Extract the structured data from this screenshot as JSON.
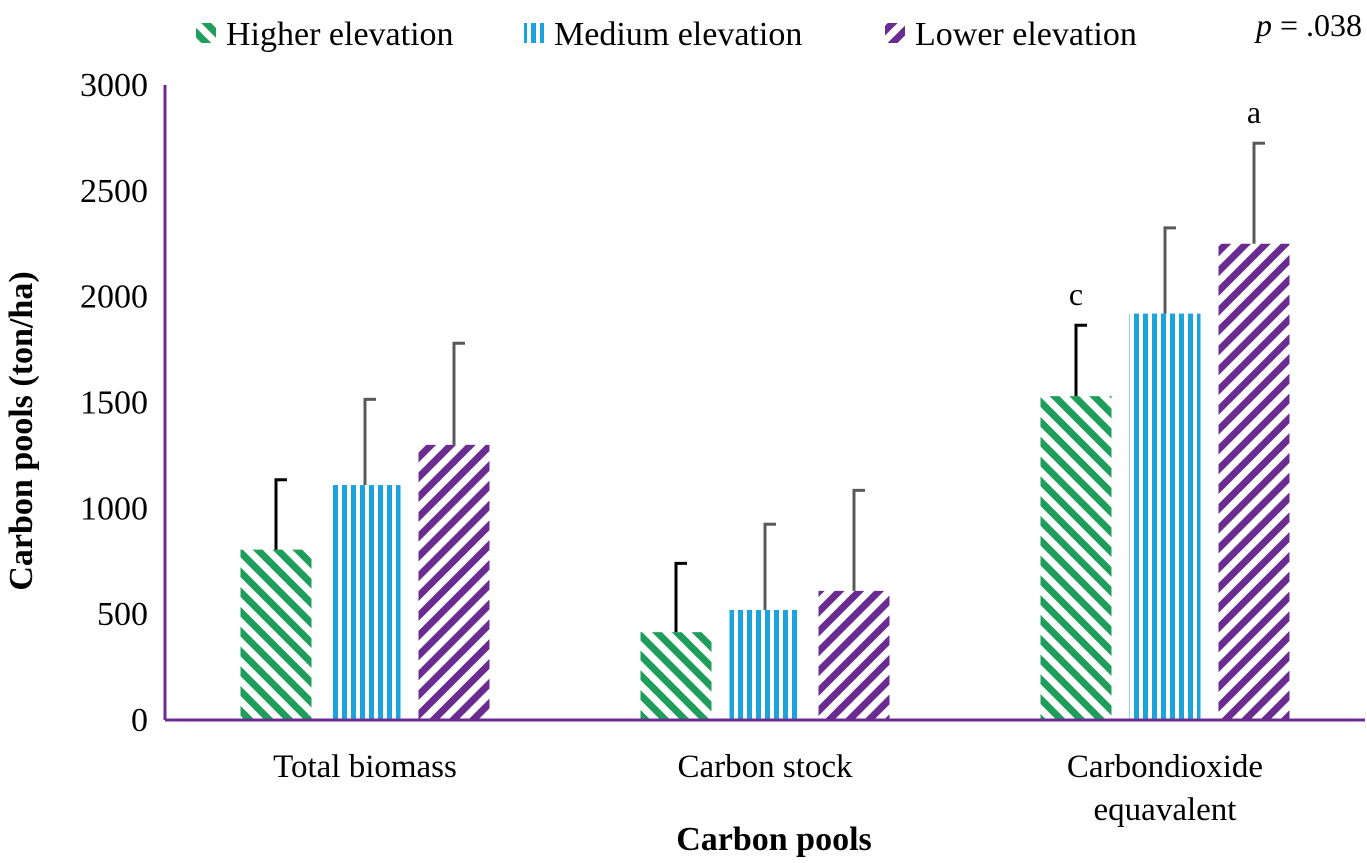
{
  "chart_data": {
    "type": "bar",
    "categories": [
      "Total biomass",
      "Carbon stock",
      "Carbondioxide equavalent"
    ],
    "category_lines": [
      [
        "Total biomass"
      ],
      [
        "Carbon stock"
      ],
      [
        "Carbondioxide",
        "equavalent"
      ]
    ],
    "series": [
      {
        "name": "Higher elevation",
        "values": [
          805,
          415,
          1530
        ],
        "error_upper": [
          1135,
          740,
          1865
        ],
        "color": "#1e9e5a",
        "pattern": "diagonal-stripes"
      },
      {
        "name": "Medium elevation",
        "values": [
          1110,
          520,
          1920
        ],
        "error_upper": [
          1515,
          925,
          2325
        ],
        "color": "#1aa3dc",
        "pattern": "vertical-stripes"
      },
      {
        "name": "Lower elevation",
        "values": [
          1300,
          610,
          2250
        ],
        "error_upper": [
          1780,
          1085,
          2725
        ],
        "color": "#6a2c91",
        "pattern": "diagonal-stripes-wide"
      }
    ],
    "annotations": [
      {
        "series": 0,
        "category": 2,
        "text": "c"
      },
      {
        "series": 2,
        "category": 2,
        "text": "a"
      }
    ],
    "p_value": {
      "label": "p",
      "text": " = .038"
    },
    "xlabel": "Carbon pools",
    "ylabel": "Carbon pools (ton/ha)",
    "ylim": [
      0,
      3000
    ],
    "yticks": [
      0,
      500,
      1000,
      1500,
      2000,
      2500,
      3000
    ],
    "legend_position": "top",
    "grid": false,
    "axis_color": "#6a2c91"
  }
}
